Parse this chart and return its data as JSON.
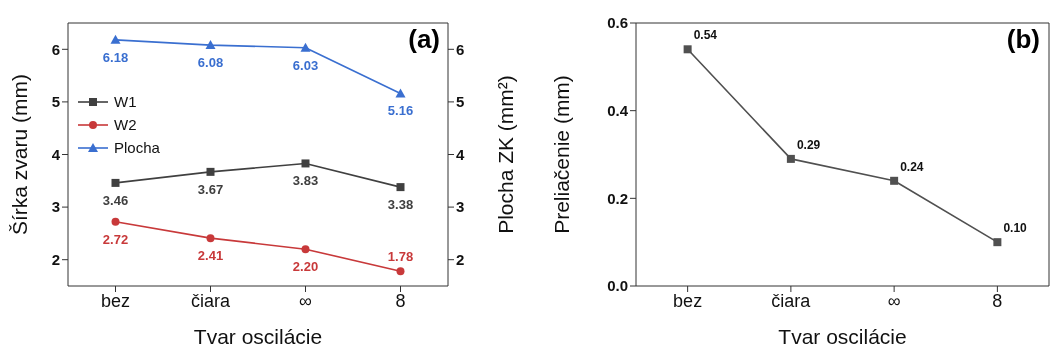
{
  "chart_data": [
    {
      "type": "line",
      "title": "(a)",
      "xlabel": "Tvar oscilácie",
      "ylabel": "Šírka zvaru (mm)",
      "y2label": "Plocha ZK (mm²)",
      "categories": [
        "bez",
        "čiara",
        "∞",
        "8"
      ],
      "series": [
        {
          "name": "W1",
          "color": "#404040",
          "marker": "square",
          "values": [
            3.46,
            3.67,
            3.83,
            3.38
          ],
          "value_labels": [
            "3.46",
            "3.67",
            "3.83",
            "3.38"
          ]
        },
        {
          "name": "W2",
          "color": "#c8393a",
          "marker": "circle",
          "values": [
            2.72,
            2.41,
            2.2,
            1.78
          ],
          "value_labels": [
            "2.72",
            "2.41",
            "2.20",
            "1.78"
          ]
        },
        {
          "name": "Plocha",
          "color": "#3a6fd0",
          "marker": "triangle",
          "axis": "y2",
          "values": [
            6.18,
            6.08,
            6.03,
            5.16
          ],
          "value_labels": [
            "6.18",
            "6.08",
            "6.03",
            "5.16"
          ]
        }
      ],
      "ylim": [
        1.5,
        6.5
      ],
      "yticks": [
        2,
        3,
        4,
        5,
        6
      ],
      "y2lim": [
        1.5,
        6.5
      ],
      "y2ticks": [
        2,
        3,
        4,
        5,
        6
      ],
      "grid": false,
      "legend": "left",
      "line_style": "solid"
    },
    {
      "type": "line",
      "title": "(b)",
      "xlabel": "Tvar oscilácie",
      "ylabel": "Preliačenie (mm)",
      "categories": [
        "bez",
        "čiara",
        "∞",
        "8"
      ],
      "series": [
        {
          "color": "#505050",
          "marker": "square",
          "values": [
            0.54,
            0.29,
            0.24,
            0.1
          ],
          "value_labels": [
            "0.54",
            "0.29",
            "0.24",
            "0.10"
          ]
        }
      ],
      "ylim": [
        0,
        0.6
      ],
      "yticks": [
        {
          "value": 0,
          "label": "0.0"
        },
        {
          "value": 0.2,
          "label": "0.2"
        },
        {
          "value": 0.4,
          "label": "0.4"
        },
        {
          "value": 0.6,
          "label": "0.6"
        }
      ],
      "grid": false,
      "legend": false,
      "line_style": "solid"
    }
  ]
}
